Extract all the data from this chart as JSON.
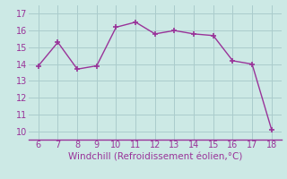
{
  "x": [
    6,
    7,
    8,
    9,
    10,
    11,
    12,
    13,
    14,
    15,
    16,
    17,
    18
  ],
  "y": [
    13.9,
    15.3,
    13.7,
    13.9,
    16.2,
    16.5,
    15.8,
    16.0,
    15.8,
    15.7,
    14.2,
    14.0,
    10.1
  ],
  "line_color": "#993399",
  "marker": "+",
  "marker_size": 4,
  "marker_linewidth": 1.2,
  "linewidth": 1.0,
  "background_color": "#cce9e5",
  "grid_color": "#aacccc",
  "xlabel": "Windchill (Refroidissement éolien,°C)",
  "xlabel_color": "#993399",
  "tick_color": "#993399",
  "spine_color": "#993399",
  "xlim": [
    5.5,
    18.5
  ],
  "ylim": [
    9.5,
    17.5
  ],
  "xticks": [
    6,
    7,
    8,
    9,
    10,
    11,
    12,
    13,
    14,
    15,
    16,
    17,
    18
  ],
  "yticks": [
    10,
    11,
    12,
    13,
    14,
    15,
    16,
    17
  ],
  "tick_fontsize": 7,
  "xlabel_fontsize": 7.5
}
